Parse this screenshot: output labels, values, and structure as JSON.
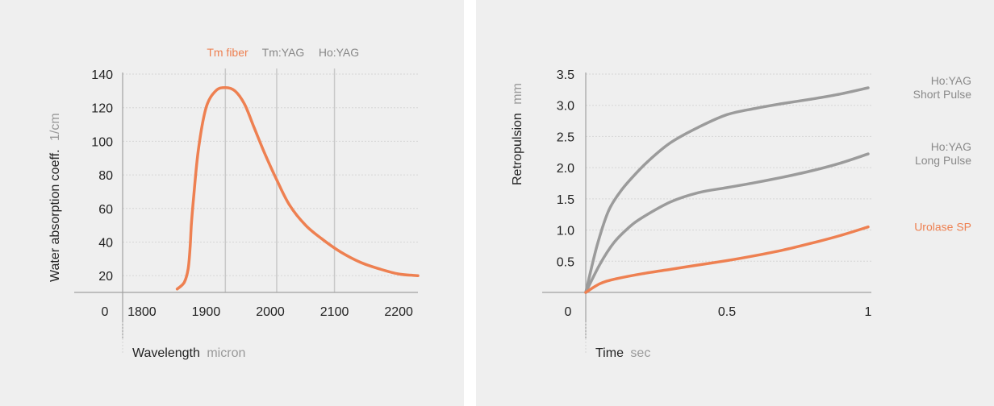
{
  "chart_data": [
    {
      "type": "line",
      "xlabel": "Wavelength",
      "xunit": "micron",
      "ylabel": "Water absorption coeff.",
      "yunit": "1/cm",
      "x_ticks": [
        "1800",
        "1900",
        "2000",
        "2100",
        "2200"
      ],
      "y_ticks": [
        "140",
        "120",
        "100",
        "80",
        "60",
        "40",
        "20"
      ],
      "origin_label": "0",
      "xlim": [
        1770,
        2230
      ],
      "ylim": [
        10,
        140
      ],
      "grid": true,
      "markers": [
        {
          "name": "Tm fiber",
          "x": 1930,
          "color": "#ee8051"
        },
        {
          "name": "Tm:YAG",
          "x": 2010,
          "color": "#888888"
        },
        {
          "name": "Ho:YAG",
          "x": 2100,
          "color": "#888888"
        }
      ],
      "series": [
        {
          "color": "#ee8051",
          "x": [
            1855,
            1866,
            1872,
            1875,
            1877,
            1880,
            1888,
            1900,
            1915,
            1930,
            1945,
            1960,
            1975,
            1990,
            2010,
            2030,
            2055,
            2080,
            2110,
            2140,
            2170,
            2200,
            2230
          ],
          "y": [
            12,
            16,
            24,
            36,
            50,
            64,
            95,
            120,
            130,
            132,
            130,
            122,
            108,
            94,
            77,
            62,
            50,
            42,
            34,
            28,
            24,
            21,
            20
          ]
        }
      ]
    },
    {
      "type": "line",
      "xlabel": "Time",
      "xunit": "sec",
      "ylabel": "Retropulsion",
      "yunit": "mm",
      "x_ticks": [
        "0.5",
        "1"
      ],
      "x_tick_values": [
        0.5,
        1
      ],
      "y_ticks": [
        "3.5",
        "3.0",
        "2.5",
        "2.0",
        "1.5",
        "1.0",
        "0.5"
      ],
      "origin_label": "0",
      "xlim": [
        0,
        1
      ],
      "ylim": [
        0,
        3.5
      ],
      "grid": true,
      "series": [
        {
          "name_lines": [
            "Ho:YAG",
            "Short Pulse"
          ],
          "color": "#9b9b9b",
          "x": [
            0,
            0.04,
            0.08,
            0.12,
            0.16,
            0.22,
            0.3,
            0.4,
            0.5,
            0.6,
            0.7,
            0.8,
            0.9,
            1.0
          ],
          "y": [
            0,
            0.75,
            1.3,
            1.6,
            1.82,
            2.1,
            2.4,
            2.65,
            2.85,
            2.95,
            3.03,
            3.1,
            3.18,
            3.28
          ]
        },
        {
          "name_lines": [
            "Ho:YAG",
            "Long Pulse"
          ],
          "color": "#9b9b9b",
          "x": [
            0,
            0.05,
            0.1,
            0.15,
            0.2,
            0.3,
            0.4,
            0.5,
            0.6,
            0.7,
            0.8,
            0.9,
            1.0
          ],
          "y": [
            0,
            0.45,
            0.8,
            1.03,
            1.2,
            1.45,
            1.6,
            1.68,
            1.76,
            1.85,
            1.95,
            2.07,
            2.22
          ]
        },
        {
          "name_lines": [
            "Urolase SP"
          ],
          "color": "#ee8051",
          "x": [
            0,
            0.05,
            0.1,
            0.2,
            0.3,
            0.4,
            0.5,
            0.6,
            0.7,
            0.8,
            0.9,
            1.0
          ],
          "y": [
            0,
            0.14,
            0.21,
            0.3,
            0.37,
            0.44,
            0.51,
            0.59,
            0.68,
            0.79,
            0.91,
            1.05
          ]
        }
      ]
    }
  ]
}
